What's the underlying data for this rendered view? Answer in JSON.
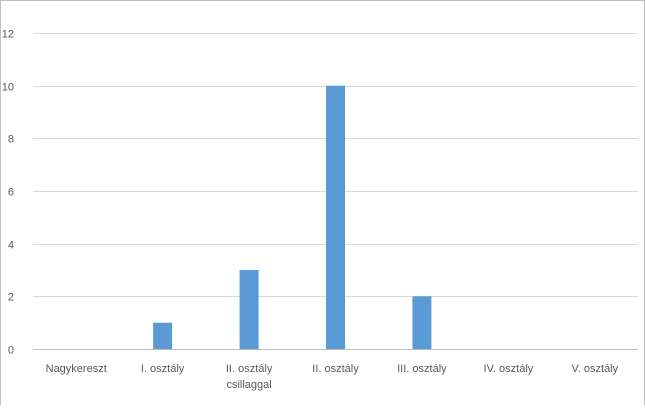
{
  "chart_data": {
    "type": "bar",
    "title": "",
    "xlabel": "",
    "ylabel": "",
    "categories": [
      [
        "Nagykereszt"
      ],
      [
        "I. osztály"
      ],
      [
        "II. osztály",
        "csillaggal"
      ],
      [
        "II. osztály"
      ],
      [
        "III. osztály"
      ],
      [
        "IV. osztály"
      ],
      [
        "V. osztály"
      ]
    ],
    "values": [
      0,
      1,
      3,
      10,
      2,
      0,
      0
    ],
    "ylim": [
      0,
      12
    ],
    "yticks": [
      0,
      2,
      4,
      6,
      8,
      10,
      12
    ],
    "grid": true,
    "legend": "none",
    "bar_color": "#5b9bd5",
    "grid_color": "#d9d9d9",
    "axis_color": "#bfbfbf"
  }
}
